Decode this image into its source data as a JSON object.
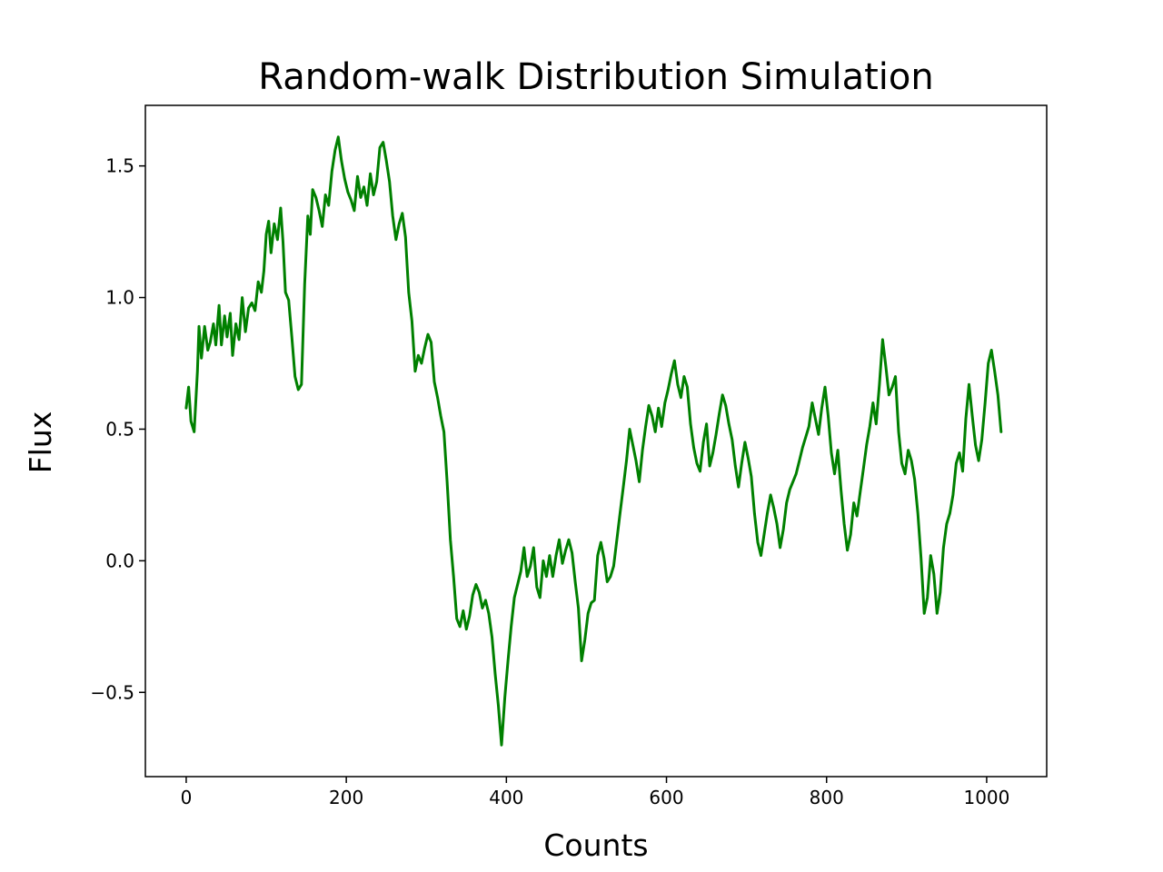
{
  "chart_data": {
    "type": "line",
    "title": "Random-walk Distribution Simulation",
    "xlabel": "Counts",
    "ylabel": "Flux",
    "xlim": [
      -51,
      1075
    ],
    "ylim": [
      -0.82,
      1.73
    ],
    "xticks": [
      0,
      200,
      400,
      600,
      800,
      1000
    ],
    "xtick_labels": [
      "0",
      "200",
      "400",
      "600",
      "800",
      "1000"
    ],
    "yticks": [
      -0.5,
      0.0,
      0.5,
      1.0,
      1.5
    ],
    "ytick_labels": [
      "−0.5",
      "0.0",
      "0.5",
      "1.0",
      "1.5"
    ],
    "grid": false,
    "legend": "none",
    "series": [
      {
        "color": "#008000",
        "points": [
          [
            0,
            0.58
          ],
          [
            3,
            0.66
          ],
          [
            6,
            0.53
          ],
          [
            10,
            0.49
          ],
          [
            14,
            0.72
          ],
          [
            16,
            0.89
          ],
          [
            19,
            0.77
          ],
          [
            23,
            0.89
          ],
          [
            27,
            0.8
          ],
          [
            30,
            0.83
          ],
          [
            34,
            0.9
          ],
          [
            37,
            0.82
          ],
          [
            41,
            0.97
          ],
          [
            44,
            0.82
          ],
          [
            48,
            0.93
          ],
          [
            51,
            0.85
          ],
          [
            55,
            0.94
          ],
          [
            58,
            0.78
          ],
          [
            62,
            0.9
          ],
          [
            66,
            0.84
          ],
          [
            70,
            1.0
          ],
          [
            74,
            0.87
          ],
          [
            78,
            0.96
          ],
          [
            82,
            0.98
          ],
          [
            86,
            0.95
          ],
          [
            90,
            1.06
          ],
          [
            94,
            1.02
          ],
          [
            97,
            1.1
          ],
          [
            100,
            1.24
          ],
          [
            103,
            1.29
          ],
          [
            106,
            1.17
          ],
          [
            110,
            1.28
          ],
          [
            114,
            1.22
          ],
          [
            118,
            1.34
          ],
          [
            121,
            1.21
          ],
          [
            124,
            1.02
          ],
          [
            128,
            0.99
          ],
          [
            132,
            0.85
          ],
          [
            136,
            0.7
          ],
          [
            140,
            0.65
          ],
          [
            144,
            0.67
          ],
          [
            148,
            1.05
          ],
          [
            152,
            1.31
          ],
          [
            155,
            1.24
          ],
          [
            158,
            1.41
          ],
          [
            162,
            1.38
          ],
          [
            166,
            1.33
          ],
          [
            170,
            1.27
          ],
          [
            174,
            1.39
          ],
          [
            178,
            1.35
          ],
          [
            182,
            1.48
          ],
          [
            186,
            1.56
          ],
          [
            190,
            1.61
          ],
          [
            194,
            1.52
          ],
          [
            198,
            1.45
          ],
          [
            202,
            1.4
          ],
          [
            206,
            1.37
          ],
          [
            210,
            1.33
          ],
          [
            214,
            1.46
          ],
          [
            218,
            1.38
          ],
          [
            222,
            1.42
          ],
          [
            226,
            1.35
          ],
          [
            230,
            1.47
          ],
          [
            234,
            1.39
          ],
          [
            238,
            1.44
          ],
          [
            242,
            1.57
          ],
          [
            246,
            1.59
          ],
          [
            250,
            1.52
          ],
          [
            254,
            1.44
          ],
          [
            258,
            1.31
          ],
          [
            262,
            1.22
          ],
          [
            266,
            1.28
          ],
          [
            270,
            1.32
          ],
          [
            274,
            1.23
          ],
          [
            278,
            1.02
          ],
          [
            282,
            0.91
          ],
          [
            286,
            0.72
          ],
          [
            290,
            0.78
          ],
          [
            294,
            0.75
          ],
          [
            298,
            0.81
          ],
          [
            302,
            0.86
          ],
          [
            306,
            0.83
          ],
          [
            310,
            0.68
          ],
          [
            314,
            0.62
          ],
          [
            318,
            0.55
          ],
          [
            322,
            0.49
          ],
          [
            326,
            0.3
          ],
          [
            330,
            0.08
          ],
          [
            334,
            -0.06
          ],
          [
            338,
            -0.22
          ],
          [
            342,
            -0.25
          ],
          [
            346,
            -0.19
          ],
          [
            350,
            -0.26
          ],
          [
            354,
            -0.21
          ],
          [
            358,
            -0.13
          ],
          [
            362,
            -0.09
          ],
          [
            366,
            -0.12
          ],
          [
            370,
            -0.18
          ],
          [
            374,
            -0.15
          ],
          [
            378,
            -0.2
          ],
          [
            382,
            -0.29
          ],
          [
            386,
            -0.43
          ],
          [
            390,
            -0.55
          ],
          [
            394,
            -0.7
          ],
          [
            398,
            -0.52
          ],
          [
            402,
            -0.38
          ],
          [
            406,
            -0.25
          ],
          [
            410,
            -0.14
          ],
          [
            414,
            -0.09
          ],
          [
            418,
            -0.04
          ],
          [
            422,
            0.05
          ],
          [
            426,
            -0.06
          ],
          [
            430,
            -0.02
          ],
          [
            434,
            0.05
          ],
          [
            438,
            -0.1
          ],
          [
            442,
            -0.14
          ],
          [
            446,
            0.0
          ],
          [
            450,
            -0.06
          ],
          [
            454,
            0.02
          ],
          [
            458,
            -0.06
          ],
          [
            462,
            0.02
          ],
          [
            466,
            0.08
          ],
          [
            470,
            -0.01
          ],
          [
            474,
            0.04
          ],
          [
            478,
            0.08
          ],
          [
            482,
            0.03
          ],
          [
            486,
            -0.08
          ],
          [
            490,
            -0.18
          ],
          [
            494,
            -0.38
          ],
          [
            498,
            -0.3
          ],
          [
            502,
            -0.2
          ],
          [
            506,
            -0.16
          ],
          [
            510,
            -0.15
          ],
          [
            514,
            0.02
          ],
          [
            518,
            0.07
          ],
          [
            522,
            0.01
          ],
          [
            526,
            -0.08
          ],
          [
            530,
            -0.06
          ],
          [
            534,
            -0.02
          ],
          [
            538,
            0.08
          ],
          [
            542,
            0.18
          ],
          [
            546,
            0.28
          ],
          [
            550,
            0.38
          ],
          [
            554,
            0.5
          ],
          [
            558,
            0.44
          ],
          [
            562,
            0.38
          ],
          [
            566,
            0.3
          ],
          [
            570,
            0.42
          ],
          [
            574,
            0.51
          ],
          [
            578,
            0.59
          ],
          [
            582,
            0.55
          ],
          [
            586,
            0.49
          ],
          [
            590,
            0.58
          ],
          [
            594,
            0.51
          ],
          [
            598,
            0.6
          ],
          [
            602,
            0.65
          ],
          [
            606,
            0.71
          ],
          [
            610,
            0.76
          ],
          [
            614,
            0.67
          ],
          [
            618,
            0.62
          ],
          [
            622,
            0.7
          ],
          [
            626,
            0.66
          ],
          [
            630,
            0.52
          ],
          [
            634,
            0.43
          ],
          [
            638,
            0.37
          ],
          [
            642,
            0.34
          ],
          [
            646,
            0.45
          ],
          [
            650,
            0.52
          ],
          [
            654,
            0.36
          ],
          [
            658,
            0.41
          ],
          [
            662,
            0.48
          ],
          [
            666,
            0.56
          ],
          [
            670,
            0.63
          ],
          [
            674,
            0.59
          ],
          [
            678,
            0.52
          ],
          [
            682,
            0.46
          ],
          [
            686,
            0.36
          ],
          [
            690,
            0.28
          ],
          [
            694,
            0.37
          ],
          [
            698,
            0.45
          ],
          [
            702,
            0.39
          ],
          [
            706,
            0.32
          ],
          [
            710,
            0.18
          ],
          [
            714,
            0.07
          ],
          [
            718,
            0.02
          ],
          [
            722,
            0.1
          ],
          [
            726,
            0.18
          ],
          [
            730,
            0.25
          ],
          [
            734,
            0.2
          ],
          [
            738,
            0.14
          ],
          [
            742,
            0.05
          ],
          [
            746,
            0.12
          ],
          [
            750,
            0.22
          ],
          [
            754,
            0.27
          ],
          [
            758,
            0.3
          ],
          [
            762,
            0.33
          ],
          [
            766,
            0.38
          ],
          [
            770,
            0.43
          ],
          [
            774,
            0.47
          ],
          [
            778,
            0.51
          ],
          [
            782,
            0.6
          ],
          [
            786,
            0.54
          ],
          [
            790,
            0.48
          ],
          [
            794,
            0.58
          ],
          [
            798,
            0.66
          ],
          [
            802,
            0.55
          ],
          [
            806,
            0.41
          ],
          [
            810,
            0.33
          ],
          [
            814,
            0.42
          ],
          [
            818,
            0.27
          ],
          [
            822,
            0.14
          ],
          [
            826,
            0.04
          ],
          [
            830,
            0.1
          ],
          [
            834,
            0.22
          ],
          [
            838,
            0.17
          ],
          [
            842,
            0.26
          ],
          [
            846,
            0.35
          ],
          [
            850,
            0.44
          ],
          [
            854,
            0.51
          ],
          [
            858,
            0.6
          ],
          [
            862,
            0.52
          ],
          [
            866,
            0.67
          ],
          [
            870,
            0.84
          ],
          [
            874,
            0.74
          ],
          [
            878,
            0.63
          ],
          [
            882,
            0.66
          ],
          [
            886,
            0.7
          ],
          [
            890,
            0.49
          ],
          [
            894,
            0.37
          ],
          [
            898,
            0.33
          ],
          [
            902,
            0.42
          ],
          [
            906,
            0.38
          ],
          [
            910,
            0.31
          ],
          [
            914,
            0.18
          ],
          [
            918,
            0.01
          ],
          [
            922,
            -0.2
          ],
          [
            926,
            -0.14
          ],
          [
            930,
            0.02
          ],
          [
            934,
            -0.05
          ],
          [
            938,
            -0.2
          ],
          [
            942,
            -0.12
          ],
          [
            946,
            0.05
          ],
          [
            950,
            0.14
          ],
          [
            954,
            0.18
          ],
          [
            958,
            0.25
          ],
          [
            962,
            0.37
          ],
          [
            966,
            0.41
          ],
          [
            970,
            0.34
          ],
          [
            974,
            0.54
          ],
          [
            978,
            0.67
          ],
          [
            982,
            0.55
          ],
          [
            986,
            0.44
          ],
          [
            990,
            0.38
          ],
          [
            994,
            0.46
          ],
          [
            998,
            0.6
          ],
          [
            1002,
            0.75
          ],
          [
            1006,
            0.8
          ],
          [
            1010,
            0.72
          ],
          [
            1014,
            0.63
          ],
          [
            1018,
            0.49
          ]
        ]
      }
    ]
  }
}
